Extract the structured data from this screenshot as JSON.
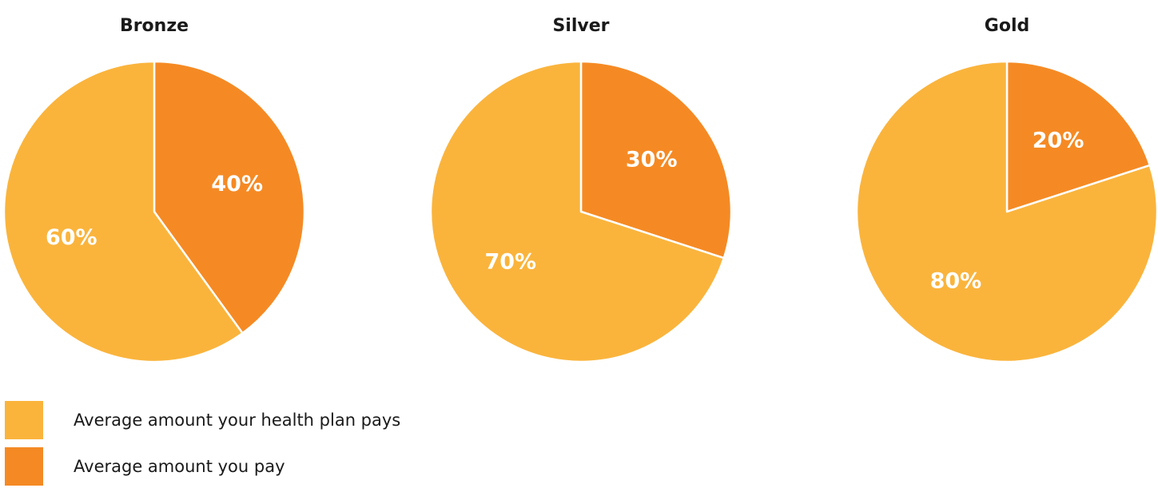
{
  "chart_data": [
    {
      "type": "pie",
      "title": "Bronze",
      "slices": [
        {
          "series": 1,
          "value": 40,
          "label": "40%"
        },
        {
          "series": 0,
          "value": 60,
          "label": "60%"
        }
      ]
    },
    {
      "type": "pie",
      "title": "Silver",
      "slices": [
        {
          "series": 1,
          "value": 30,
          "label": "30%"
        },
        {
          "series": 0,
          "value": 70,
          "label": "70%"
        }
      ]
    },
    {
      "type": "pie",
      "title": "Gold",
      "slices": [
        {
          "series": 1,
          "value": 20,
          "label": "20%"
        },
        {
          "series": 0,
          "value": 80,
          "label": "80%"
        }
      ]
    }
  ],
  "legend": {
    "placement": "bottom-left",
    "items": [
      {
        "label": "Average amount your health plan pays",
        "color": "#FAB43C"
      },
      {
        "label": "Average amount you pay",
        "color": "#F58A24"
      }
    ]
  }
}
